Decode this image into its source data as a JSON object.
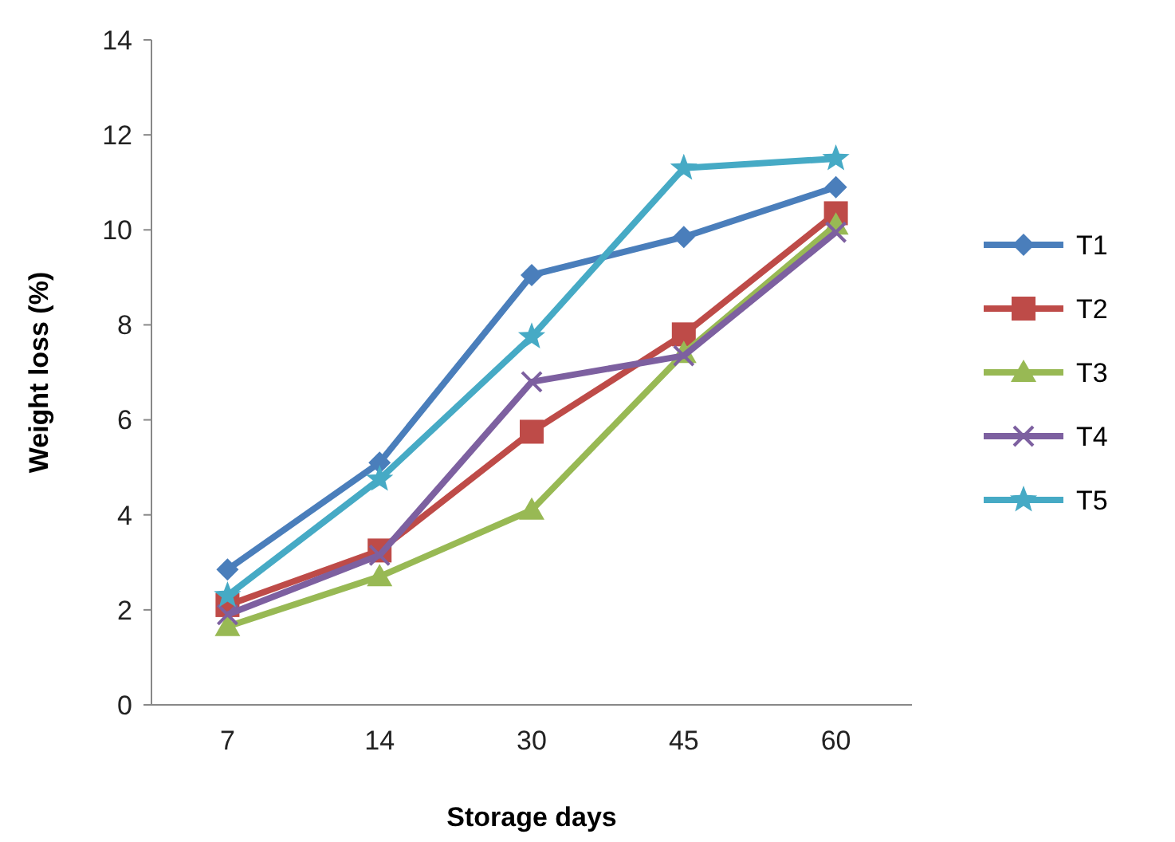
{
  "chart_data": {
    "type": "line",
    "xlabel": "Storage days",
    "ylabel": "Weight loss (%)",
    "categories": [
      "7",
      "14",
      "30",
      "45",
      "60"
    ],
    "ylim": [
      0,
      14
    ],
    "yticks": [
      0,
      2,
      4,
      6,
      8,
      10,
      12,
      14
    ],
    "grid": false,
    "legend": "right",
    "line_style": "solid",
    "series": [
      {
        "name": "T1",
        "color": "#4a7ebb",
        "marker": "diamond",
        "values": [
          2.85,
          5.1,
          9.05,
          9.85,
          10.9
        ]
      },
      {
        "name": "T2",
        "color": "#be4b48",
        "marker": "square",
        "values": [
          2.1,
          3.25,
          5.75,
          7.8,
          10.35
        ]
      },
      {
        "name": "T3",
        "color": "#98b954",
        "marker": "triangle",
        "values": [
          1.65,
          2.7,
          4.1,
          7.4,
          10.1
        ]
      },
      {
        "name": "T4",
        "color": "#7d60a0",
        "marker": "cross",
        "values": [
          1.9,
          3.15,
          6.8,
          7.35,
          9.95
        ]
      },
      {
        "name": "T5",
        "color": "#46aac5",
        "marker": "star",
        "values": [
          2.3,
          4.75,
          7.75,
          11.3,
          11.5
        ]
      }
    ]
  }
}
